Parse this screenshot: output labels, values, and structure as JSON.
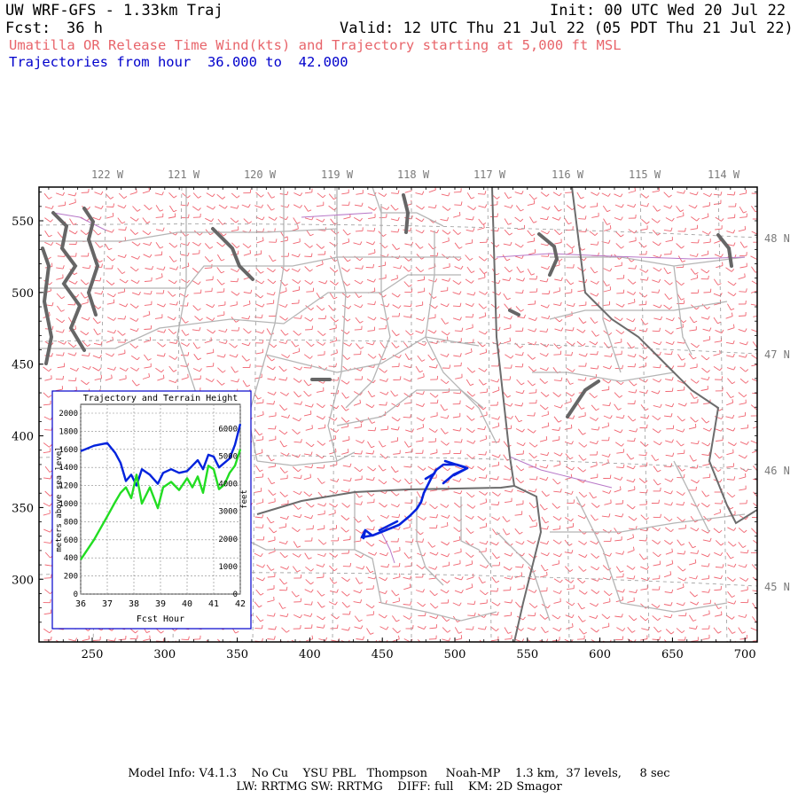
{
  "header": {
    "model_title": "UW WRF-GFS - 1.33km Traj",
    "init_text": "Init: 00 UTC Wed 20 Jul 22",
    "fcst_label": "Fcst:",
    "fcst_value": "36 h",
    "valid_text": "Valid: 12 UTC Thu 21 Jul 22 (05 PDT Thu 21 Jul 22)",
    "release_text": "Umatilla OR Release Time Wind(kts) and Trajectory starting at 5,000 ft MSL",
    "traj_hours_text": "Trajectories from hour  36.000 to  42.000"
  },
  "map": {
    "lon_labels": [
      "122 W",
      "121 W",
      "120 W",
      "119 W",
      "118 W",
      "117 W",
      "116 W",
      "115 W",
      "114 W"
    ],
    "lat_labels": [
      "48 N",
      "47 N",
      "46 N",
      "45 N"
    ],
    "x_ticks": [
      "250",
      "300",
      "350",
      "400",
      "450",
      "500",
      "550",
      "600",
      "650",
      "700"
    ],
    "y_ticks": [
      "550",
      "500",
      "450",
      "400",
      "350",
      "300"
    ],
    "colors": {
      "wind_barb": "#f06470",
      "state_border": "#707070",
      "county_border": "#b0b0b0",
      "water": "#666666",
      "trajectory": "#0022dd",
      "purple_line": "#b060c0"
    }
  },
  "inset": {
    "title": "Trajectory and Terrain Height",
    "left_axis_label": "meters above sea level",
    "right_axis_label": "feet",
    "x_axis_label": "Fcst Hour",
    "left_ticks": [
      "0",
      "200",
      "400",
      "600",
      "800",
      "1000",
      "1200",
      "1400",
      "1600",
      "1800",
      "2000"
    ],
    "right_ticks": [
      "0",
      "1000",
      "2000",
      "3000",
      "4000",
      "5000",
      "6000"
    ],
    "x_ticks": [
      "36",
      "37",
      "38",
      "39",
      "40",
      "41",
      "42"
    ],
    "chart_data": {
      "type": "line",
      "x": [
        36.0,
        36.5,
        37.0,
        37.3,
        37.5,
        37.7,
        37.9,
        38.1,
        38.3,
        38.6,
        38.9,
        39.1,
        39.4,
        39.7,
        40.0,
        40.2,
        40.4,
        40.6,
        40.8,
        41.0,
        41.2,
        41.4,
        41.6,
        41.8,
        42.0
      ],
      "series": [
        {
          "color": "#0022dd",
          "values": [
            1580,
            1640,
            1670,
            1560,
            1450,
            1250,
            1320,
            1200,
            1380,
            1320,
            1220,
            1340,
            1380,
            1340,
            1360,
            1420,
            1480,
            1380,
            1540,
            1520,
            1400,
            1450,
            1500,
            1650,
            1880
          ]
        },
        {
          "color": "#22dd22",
          "values": [
            380,
            600,
            860,
            1020,
            1120,
            1180,
            1060,
            1320,
            1000,
            1180,
            950,
            1180,
            1240,
            1150,
            1280,
            1180,
            1300,
            1120,
            1420,
            1380,
            1160,
            1210,
            1340,
            1420,
            1600
          ]
        }
      ],
      "ylim": [
        0,
        2000
      ],
      "xlim": [
        36,
        42
      ]
    }
  },
  "footer": {
    "line1": "Model Info: V4.1.3    No Cu    YSU PBL   Thompson     Noah-MP    1.3 km,  37 levels,     8 sec",
    "line2": "LW: RRTMG SW: RRTMG    DIFF: full    KM: 2D Smagor"
  }
}
